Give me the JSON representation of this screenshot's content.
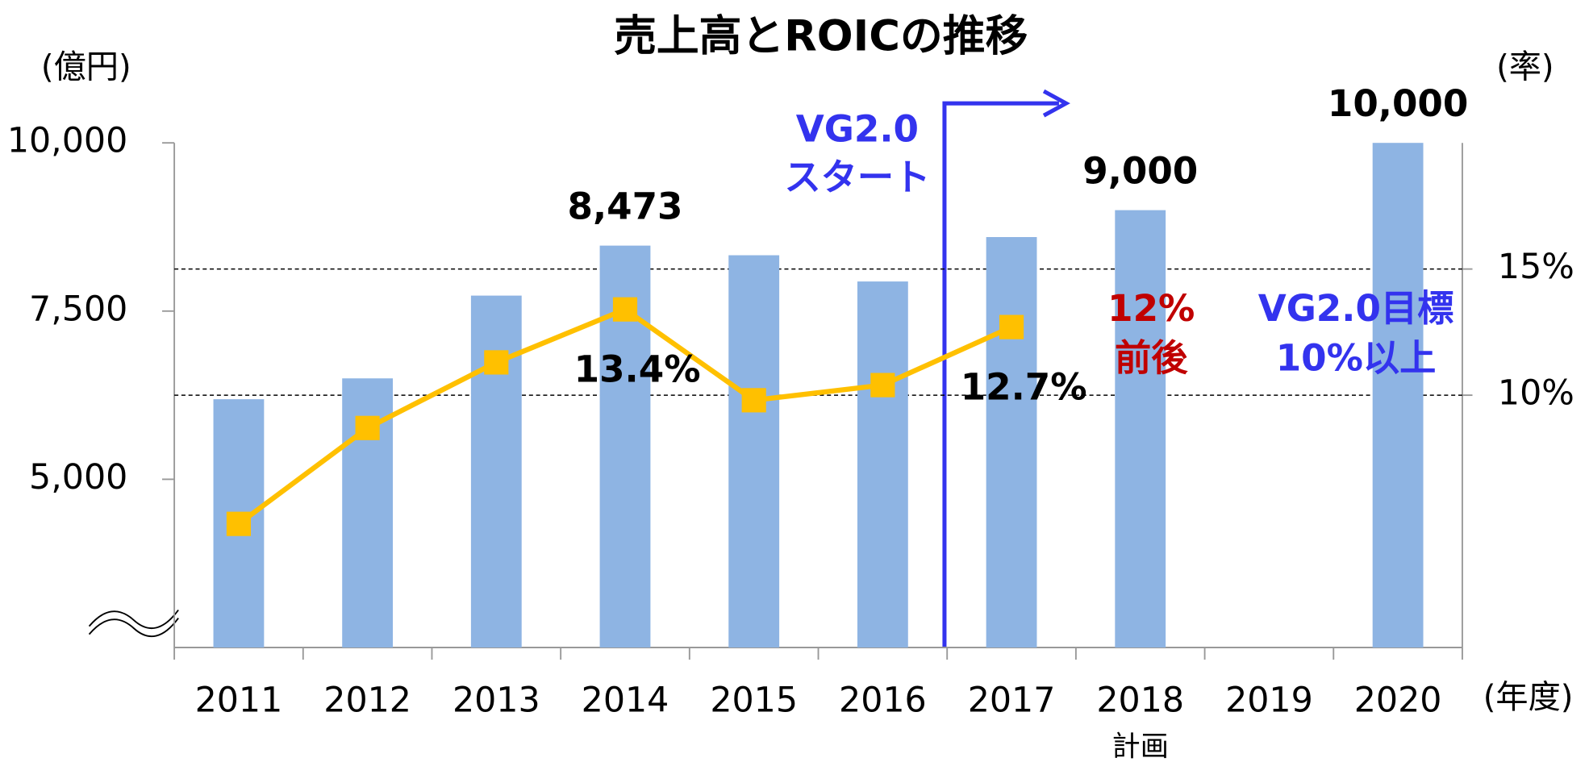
{
  "chart_data": {
    "type": "bar",
    "title": "売上高とROICの推移",
    "y_label": "(億円)",
    "y2_label": "(率)",
    "x_label": "(年度)",
    "categories": [
      "2011",
      "2012",
      "2013",
      "2014",
      "2015",
      "2016",
      "2017",
      "2018",
      "2019",
      "2020"
    ],
    "category_sublabels": [
      null,
      null,
      null,
      null,
      null,
      null,
      null,
      "計画",
      null,
      null
    ],
    "series": [
      {
        "type": "bar",
        "color": "#8eb4e3",
        "values": [
          6190,
          6500,
          7730,
          8473,
          8330,
          7940,
          8600,
          9000,
          null,
          10000
        ],
        "value_labels": [
          null,
          null,
          null,
          "8,473",
          null,
          null,
          null,
          "9,000",
          null,
          "10,000"
        ]
      },
      {
        "type": "line",
        "axis": "y2",
        "color": "#ffc000",
        "values": [
          4.9,
          8.7,
          11.3,
          13.4,
          9.8,
          10.4,
          12.7,
          null,
          null,
          null
        ],
        "value_labels": [
          null,
          null,
          null,
          "13.4%",
          null,
          null,
          "12.7%",
          null,
          null,
          null
        ]
      }
    ],
    "ylim": [
      2500,
      10000
    ],
    "yticks": [
      {
        "value": 5000,
        "label": "5,000"
      },
      {
        "value": 7500,
        "label": "7,500"
      },
      {
        "value": 10000,
        "label": "10,000"
      }
    ],
    "y2lim": [
      0,
      20
    ],
    "y2ticks": [
      {
        "value": 10,
        "label": "10%"
      },
      {
        "value": 15,
        "label": "15%"
      }
    ],
    "y2grid": true,
    "annotations": [
      {
        "text": "VG2.0",
        "color": "#3333ee"
      },
      {
        "text": "スタート",
        "color": "#3333ee"
      },
      {
        "text": "12%",
        "color": "#c00000"
      },
      {
        "text": "前後",
        "color": "#c00000"
      },
      {
        "text": "VG2.0目標",
        "color": "#3333ee"
      },
      {
        "text": "10%以上",
        "color": "#3333ee"
      }
    ]
  }
}
